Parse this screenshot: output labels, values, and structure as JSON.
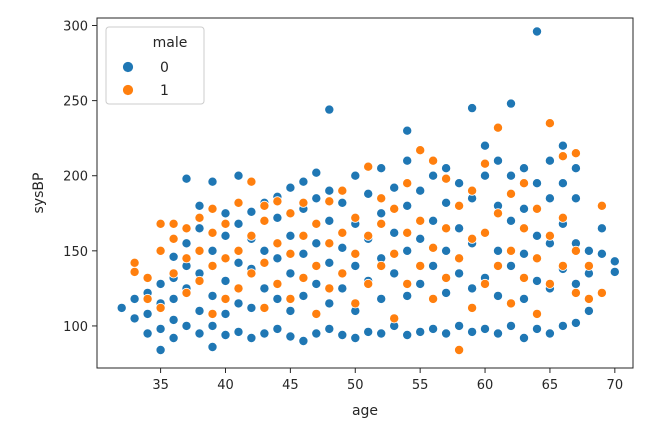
{
  "chart_data": {
    "type": "scatter",
    "title": "",
    "xlabel": "age",
    "ylabel": "sysBP",
    "xlim": [
      30.1,
      71.4
    ],
    "ylim": [
      72,
      305
    ],
    "xticks": [
      35,
      40,
      45,
      50,
      55,
      60,
      65,
      70
    ],
    "yticks": [
      100,
      150,
      200,
      250,
      300
    ],
    "grid": false,
    "legend": {
      "title": "male",
      "placement": "top-left",
      "entries": [
        {
          "label": "0",
          "color": "#1f77b4"
        },
        {
          "label": "1",
          "color": "#ff7f0e"
        }
      ]
    },
    "series": [
      {
        "name": "0",
        "color": "#1f77b4",
        "points": [
          [
            32,
            112
          ],
          [
            33,
            105
          ],
          [
            33,
            118
          ],
          [
            34,
            95
          ],
          [
            34,
            108
          ],
          [
            34,
            122
          ],
          [
            35,
            84
          ],
          [
            35,
            98
          ],
          [
            35,
            115
          ],
          [
            35,
            128
          ],
          [
            36,
            92
          ],
          [
            36,
            104
          ],
          [
            36,
            118
          ],
          [
            36,
            132
          ],
          [
            36,
            146
          ],
          [
            37,
            198
          ],
          [
            37,
            100
          ],
          [
            37,
            125
          ],
          [
            37,
            140
          ],
          [
            37,
            155
          ],
          [
            38,
            95
          ],
          [
            38,
            110
          ],
          [
            38,
            135
          ],
          [
            38,
            165
          ],
          [
            38,
            180
          ],
          [
            39,
            86
          ],
          [
            39,
            100
          ],
          [
            39,
            120
          ],
          [
            39,
            150
          ],
          [
            39,
            196
          ],
          [
            40,
            94
          ],
          [
            40,
            108
          ],
          [
            40,
            130
          ],
          [
            40,
            160
          ],
          [
            40,
            175
          ],
          [
            41,
            200
          ],
          [
            41,
            96
          ],
          [
            41,
            115
          ],
          [
            41,
            142
          ],
          [
            41,
            168
          ],
          [
            42,
            92
          ],
          [
            42,
            112
          ],
          [
            42,
            138
          ],
          [
            42,
            158
          ],
          [
            42,
            176
          ],
          [
            43,
            95
          ],
          [
            43,
            125
          ],
          [
            43,
            150
          ],
          [
            43,
            182
          ],
          [
            44,
            98
          ],
          [
            44,
            118
          ],
          [
            44,
            145
          ],
          [
            44,
            172
          ],
          [
            44,
            186
          ],
          [
            45,
            93
          ],
          [
            45,
            110
          ],
          [
            45,
            135
          ],
          [
            45,
            160
          ],
          [
            45,
            192
          ],
          [
            46,
            90
          ],
          [
            46,
            120
          ],
          [
            46,
            148
          ],
          [
            46,
            178
          ],
          [
            46,
            196
          ],
          [
            47,
            95
          ],
          [
            47,
            128
          ],
          [
            47,
            155
          ],
          [
            47,
            185
          ],
          [
            47,
            202
          ],
          [
            48,
            244
          ],
          [
            48,
            98
          ],
          [
            48,
            115
          ],
          [
            48,
            142
          ],
          [
            48,
            170
          ],
          [
            48,
            190
          ],
          [
            49,
            94
          ],
          [
            49,
            125
          ],
          [
            49,
            152
          ],
          [
            49,
            182
          ],
          [
            50,
            92
          ],
          [
            50,
            110
          ],
          [
            50,
            140
          ],
          [
            50,
            168
          ],
          [
            50,
            200
          ],
          [
            51,
            96
          ],
          [
            51,
            130
          ],
          [
            51,
            158
          ],
          [
            51,
            188
          ],
          [
            52,
            95
          ],
          [
            52,
            118
          ],
          [
            52,
            145
          ],
          [
            52,
            175
          ],
          [
            52,
            205
          ],
          [
            53,
            100
          ],
          [
            53,
            135
          ],
          [
            53,
            162
          ],
          [
            53,
            192
          ],
          [
            54,
            230
          ],
          [
            54,
            94
          ],
          [
            54,
            120
          ],
          [
            54,
            150
          ],
          [
            54,
            180
          ],
          [
            54,
            210
          ],
          [
            55,
            96
          ],
          [
            55,
            128
          ],
          [
            55,
            158
          ],
          [
            55,
            190
          ],
          [
            56,
            98
          ],
          [
            56,
            140
          ],
          [
            56,
            170
          ],
          [
            56,
            200
          ],
          [
            57,
            95
          ],
          [
            57,
            122
          ],
          [
            57,
            150
          ],
          [
            57,
            182
          ],
          [
            57,
            205
          ],
          [
            58,
            100
          ],
          [
            58,
            135
          ],
          [
            58,
            165
          ],
          [
            58,
            195
          ],
          [
            59,
            245
          ],
          [
            59,
            96
          ],
          [
            59,
            125
          ],
          [
            59,
            155
          ],
          [
            59,
            185
          ],
          [
            60,
            220
          ],
          [
            60,
            98
          ],
          [
            60,
            132
          ],
          [
            60,
            162
          ],
          [
            60,
            200
          ],
          [
            61,
            95
          ],
          [
            61,
            120
          ],
          [
            61,
            150
          ],
          [
            61,
            180
          ],
          [
            61,
            210
          ],
          [
            62,
            248
          ],
          [
            62,
            100
          ],
          [
            62,
            140
          ],
          [
            62,
            170
          ],
          [
            62,
            200
          ],
          [
            63,
            92
          ],
          [
            63,
            118
          ],
          [
            63,
            148
          ],
          [
            63,
            178
          ],
          [
            63,
            205
          ],
          [
            64,
            296
          ],
          [
            64,
            98
          ],
          [
            64,
            130
          ],
          [
            64,
            160
          ],
          [
            64,
            195
          ],
          [
            65,
            95
          ],
          [
            65,
            125
          ],
          [
            65,
            155
          ],
          [
            65,
            185
          ],
          [
            65,
            210
          ],
          [
            66,
            220
          ],
          [
            66,
            100
          ],
          [
            66,
            138
          ],
          [
            66,
            168
          ],
          [
            66,
            195
          ],
          [
            67,
            102
          ],
          [
            67,
            128
          ],
          [
            67,
            155
          ],
          [
            67,
            185
          ],
          [
            67,
            205
          ],
          [
            68,
            110
          ],
          [
            68,
            135
          ],
          [
            68,
            150
          ],
          [
            69,
            148
          ],
          [
            69,
            165
          ],
          [
            70,
            143
          ],
          [
            70,
            136
          ]
        ]
      },
      {
        "name": "1",
        "color": "#ff7f0e",
        "points": [
          [
            33,
            142
          ],
          [
            33,
            136
          ],
          [
            34,
            118
          ],
          [
            34,
            132
          ],
          [
            35,
            150
          ],
          [
            35,
            168
          ],
          [
            35,
            112
          ],
          [
            36,
            135
          ],
          [
            36,
            158
          ],
          [
            36,
            168
          ],
          [
            37,
            122
          ],
          [
            37,
            145
          ],
          [
            37,
            165
          ],
          [
            38,
            130
          ],
          [
            38,
            150
          ],
          [
            38,
            172
          ],
          [
            39,
            108
          ],
          [
            39,
            140
          ],
          [
            39,
            162
          ],
          [
            39,
            178
          ],
          [
            40,
            118
          ],
          [
            40,
            145
          ],
          [
            40,
            168
          ],
          [
            41,
            125
          ],
          [
            41,
            150
          ],
          [
            41,
            182
          ],
          [
            42,
            135
          ],
          [
            42,
            160
          ],
          [
            42,
            196
          ],
          [
            43,
            112
          ],
          [
            43,
            142
          ],
          [
            43,
            170
          ],
          [
            43,
            180
          ],
          [
            44,
            128
          ],
          [
            44,
            155
          ],
          [
            44,
            183
          ],
          [
            45,
            118
          ],
          [
            45,
            148
          ],
          [
            45,
            175
          ],
          [
            46,
            132
          ],
          [
            46,
            160
          ],
          [
            46,
            182
          ],
          [
            47,
            108
          ],
          [
            47,
            140
          ],
          [
            47,
            168
          ],
          [
            48,
            125
          ],
          [
            48,
            155
          ],
          [
            48,
            183
          ],
          [
            49,
            135
          ],
          [
            49,
            162
          ],
          [
            49,
            190
          ],
          [
            50,
            115
          ],
          [
            50,
            148
          ],
          [
            50,
            172
          ],
          [
            51,
            128
          ],
          [
            51,
            160
          ],
          [
            51,
            206
          ],
          [
            52,
            140
          ],
          [
            52,
            168
          ],
          [
            52,
            185
          ],
          [
            53,
            105
          ],
          [
            53,
            148
          ],
          [
            53,
            178
          ],
          [
            54,
            128
          ],
          [
            54,
            162
          ],
          [
            54,
            195
          ],
          [
            55,
            140
          ],
          [
            55,
            170
          ],
          [
            55,
            217
          ],
          [
            56,
            118
          ],
          [
            56,
            152
          ],
          [
            56,
            210
          ],
          [
            57,
            132
          ],
          [
            57,
            165
          ],
          [
            57,
            198
          ],
          [
            58,
            84
          ],
          [
            58,
            145
          ],
          [
            58,
            180
          ],
          [
            59,
            112
          ],
          [
            59,
            158
          ],
          [
            59,
            190
          ],
          [
            60,
            128
          ],
          [
            60,
            162
          ],
          [
            60,
            208
          ],
          [
            61,
            232
          ],
          [
            61,
            140
          ],
          [
            61,
            175
          ],
          [
            62,
            115
          ],
          [
            62,
            150
          ],
          [
            62,
            188
          ],
          [
            63,
            132
          ],
          [
            63,
            165
          ],
          [
            63,
            195
          ],
          [
            64,
            108
          ],
          [
            64,
            145
          ],
          [
            64,
            178
          ],
          [
            65,
            235
          ],
          [
            65,
            128
          ],
          [
            65,
            160
          ],
          [
            66,
            213
          ],
          [
            66,
            140
          ],
          [
            66,
            172
          ],
          [
            67,
            215
          ],
          [
            67,
            122
          ],
          [
            67,
            150
          ],
          [
            68,
            118
          ],
          [
            68,
            140
          ],
          [
            69,
            122
          ],
          [
            69,
            180
          ]
        ]
      }
    ]
  }
}
